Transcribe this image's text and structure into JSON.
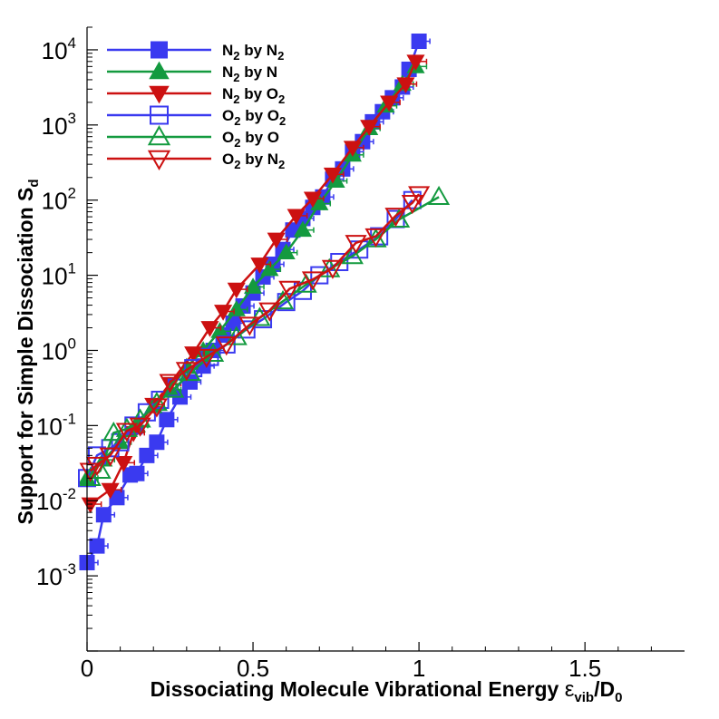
{
  "chart_data": {
    "type": "scatter",
    "title": "",
    "xlabel": "Dissociating Molecule Vibrational Energy εvib/D0",
    "xlabel_parts": {
      "main": "Dissociating Molecule Vibrational Energy ",
      "eps": "ε",
      "sub1": "vib",
      "slash": "/D",
      "sub2": "0"
    },
    "ylabel": "Support for Simple Dissociation Sd",
    "ylabel_parts": {
      "main": "Support for Simple Dissociation S",
      "sub": "d"
    },
    "xlim": [
      0,
      1.8
    ],
    "ylim": [
      0.0001,
      20000
    ],
    "yscale": "log",
    "grid": false,
    "legend_position": "top-left",
    "x_ticks": {
      "values": [
        0,
        0.5,
        1,
        1.5
      ],
      "labels": [
        "0",
        "0.5",
        "1",
        "1.5"
      ]
    },
    "y_ticks": {
      "exponents": [
        -3,
        -2,
        -1,
        0,
        1,
        2,
        3,
        4
      ],
      "base": "10"
    },
    "colors": {
      "blue": "#3a3af0",
      "green": "#139a3f",
      "red": "#cc1111"
    },
    "series": [
      {
        "name": "N2 by N2",
        "label_parts": [
          "N",
          "2",
          " by N",
          "2"
        ],
        "color": "#3a3af0",
        "marker": "square",
        "filled": true,
        "x": [
          0.0,
          0.03,
          0.05,
          0.09,
          0.13,
          0.15,
          0.18,
          0.21,
          0.24,
          0.28,
          0.31,
          0.35,
          0.38,
          0.41,
          0.44,
          0.47,
          0.5,
          0.53,
          0.56,
          0.59,
          0.62,
          0.65,
          0.68,
          0.71,
          0.74,
          0.77,
          0.8,
          0.83,
          0.86,
          0.89,
          0.92,
          0.95,
          0.97,
          1.0
        ],
        "y": [
          0.0015,
          0.0025,
          0.0065,
          0.011,
          0.022,
          0.023,
          0.04,
          0.06,
          0.12,
          0.24,
          0.38,
          0.62,
          1.0,
          1.6,
          2.3,
          3.9,
          5.8,
          9.5,
          14,
          22,
          40,
          57,
          80,
          110,
          190,
          260,
          440,
          600,
          1100,
          1500,
          2300,
          3200,
          5500,
          13000
        ]
      },
      {
        "name": "N2 by N",
        "label_parts": [
          "N",
          "2",
          " by N",
          ""
        ],
        "color": "#139a3f",
        "marker": "triangle-up",
        "filled": true,
        "x": [
          0.0,
          0.05,
          0.1,
          0.15,
          0.2,
          0.25,
          0.3,
          0.35,
          0.4,
          0.45,
          0.5,
          0.55,
          0.6,
          0.65,
          0.7,
          0.75,
          0.8,
          0.85,
          0.9,
          0.95,
          0.99
        ],
        "y": [
          0.02,
          0.035,
          0.06,
          0.1,
          0.18,
          0.3,
          0.6,
          1.0,
          1.8,
          3.5,
          7,
          12,
          20,
          40,
          90,
          180,
          400,
          900,
          1800,
          3500,
          6000
        ]
      },
      {
        "name": "N2 by O2",
        "label_parts": [
          "N",
          "2",
          " by O",
          "2"
        ],
        "color": "#cc1111",
        "marker": "triangle-down",
        "filled": true,
        "x": [
          0.01,
          0.07,
          0.11,
          0.14,
          0.2,
          0.25,
          0.32,
          0.37,
          0.41,
          0.45,
          0.52,
          0.57,
          0.63,
          0.68,
          0.74,
          0.8,
          0.85,
          0.91,
          0.96,
          0.99
        ],
        "y": [
          0.009,
          0.014,
          0.032,
          0.08,
          0.19,
          0.36,
          0.92,
          2.0,
          3.3,
          6.5,
          14,
          30,
          62,
          105,
          220,
          500,
          950,
          2000,
          3500,
          7000
        ]
      },
      {
        "name": "O2 by O2",
        "label_parts": [
          "O",
          "2",
          " by O",
          "2"
        ],
        "color": "#3a3af0",
        "marker": "square",
        "filled": false,
        "x": [
          0.0,
          0.03,
          0.07,
          0.1,
          0.14,
          0.18,
          0.22,
          0.27,
          0.32,
          0.37,
          0.42,
          0.48,
          0.53,
          0.6,
          0.65,
          0.7,
          0.76,
          0.82,
          0.88,
          0.93,
          0.98
        ],
        "y": [
          0.02,
          0.04,
          0.05,
          0.06,
          0.1,
          0.15,
          0.22,
          0.32,
          0.58,
          0.82,
          1.2,
          1.9,
          2.6,
          4.4,
          6.2,
          10,
          15,
          22,
          33,
          56,
          100
        ]
      },
      {
        "name": "O2 by O",
        "label_parts": [
          "O",
          "2",
          " by O",
          ""
        ],
        "color": "#139a3f",
        "marker": "triangle-up",
        "filled": false,
        "x": [
          0.01,
          0.04,
          0.08,
          0.12,
          0.16,
          0.21,
          0.26,
          0.31,
          0.38,
          0.45,
          0.52,
          0.59,
          0.66,
          0.73,
          0.8,
          0.87,
          0.94,
          1.06
        ],
        "y": [
          0.02,
          0.025,
          0.08,
          0.09,
          0.12,
          0.2,
          0.3,
          0.5,
          0.9,
          1.5,
          2.7,
          4.5,
          7.5,
          12,
          18,
          30,
          55,
          110
        ]
      },
      {
        "name": "O2 by N2",
        "label_parts": [
          "O",
          "2",
          " by N",
          "2"
        ],
        "color": "#cc1111",
        "marker": "triangle-down",
        "filled": false,
        "x": [
          0.01,
          0.03,
          0.07,
          0.12,
          0.16,
          0.21,
          0.25,
          0.3,
          0.36,
          0.42,
          0.49,
          0.55,
          0.61,
          0.68,
          0.74,
          0.81,
          0.87,
          0.93,
          0.98,
          1.0
        ],
        "y": [
          0.025,
          0.03,
          0.04,
          0.085,
          0.1,
          0.18,
          0.38,
          0.55,
          0.82,
          1.2,
          2.2,
          3.4,
          6.6,
          8.8,
          12.5,
          27,
          33,
          62,
          92,
          120
        ]
      }
    ]
  }
}
